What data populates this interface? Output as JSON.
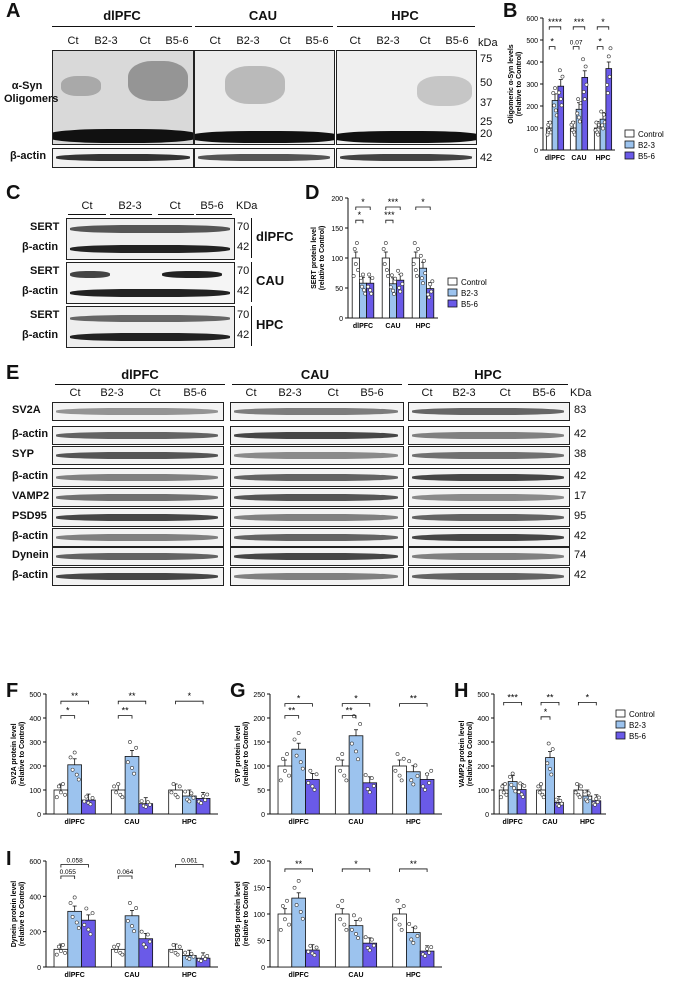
{
  "panel_letters": [
    "A",
    "B",
    "C",
    "D",
    "E",
    "F",
    "G",
    "H",
    "I",
    "J"
  ],
  "blot_A": {
    "regions": [
      "dlPFC",
      "CAU",
      "HPC"
    ],
    "lanes": [
      "Ct",
      "B2-3",
      "Ct",
      "B5-6"
    ],
    "row_labels": [
      "α-Syn\nOligomers",
      "β-actin"
    ],
    "kda_header": "kDa",
    "kda_marks": [
      "75",
      "50",
      "37",
      "25",
      "20",
      "42"
    ]
  },
  "blot_C": {
    "lanes": [
      "Ct",
      "B2-3",
      "Ct",
      "B5-6"
    ],
    "kda_header": "KDa",
    "rows": [
      {
        "region": "dlPFC",
        "labels": [
          "SERT",
          "β-actin"
        ],
        "kda": [
          "70",
          "42"
        ]
      },
      {
        "region": "CAU",
        "labels": [
          "SERT",
          "β-actin"
        ],
        "kda": [
          "70",
          "42"
        ]
      },
      {
        "region": "HPC",
        "labels": [
          "SERT",
          "β-actin"
        ],
        "kda": [
          "70",
          "42"
        ]
      }
    ]
  },
  "blot_E": {
    "regions": [
      "dlPFC",
      "CAU",
      "HPC"
    ],
    "lanes": [
      "Ct",
      "B2-3",
      "Ct",
      "B5-6"
    ],
    "kda_header": "KDa",
    "rows": [
      {
        "label": "SV2A",
        "kda": "83"
      },
      {
        "label": "β-actin",
        "kda": "42"
      },
      {
        "label": "SYP",
        "kda": "38"
      },
      {
        "label": "β-actin",
        "kda": "42"
      },
      {
        "label": "VAMP2",
        "kda": "17"
      },
      {
        "label": "PSD95",
        "kda": "95"
      },
      {
        "label": "β-actin",
        "kda": "42"
      },
      {
        "label": "Dynein",
        "kda": "74"
      },
      {
        "label": "β-actin",
        "kda": "42"
      }
    ]
  },
  "legend": {
    "labels": [
      "Control",
      "B2-3",
      "B5-6"
    ]
  },
  "colors": {
    "control": "#ffffff",
    "b23": "#9cc3ee",
    "b56": "#6a5ae8",
    "ink": "#111111"
  },
  "chart_data": [
    {
      "id": "B",
      "type": "bar",
      "ylabel": "Oligomeric α-Syn levels\n(relative to Control)",
      "categories": [
        "dlPFC",
        "CAU",
        "HPC"
      ],
      "ylim": [
        0,
        600
      ],
      "yticks": [
        0,
        100,
        200,
        300,
        400,
        500,
        600
      ],
      "tick_labels": [
        "0",
        "100",
        "200",
        "300",
        "400",
        "500",
        "600"
      ],
      "series": [
        {
          "name": "Control",
          "values": [
            100,
            100,
            100
          ]
        },
        {
          "name": "B2-3",
          "values": [
            225,
            185,
            140
          ]
        },
        {
          "name": "B5-6",
          "values": [
            290,
            330,
            370
          ]
        }
      ],
      "annotations": [
        {
          "label": "****",
          "from": 0,
          "to": 2,
          "cat": 0,
          "y": 560
        },
        {
          "label": "*",
          "from": 0,
          "to": 1,
          "cat": 0,
          "y": 470
        },
        {
          "label": "***",
          "from": 0,
          "to": 2,
          "cat": 1,
          "y": 560
        },
        {
          "label": "0.07",
          "from": 0,
          "to": 1,
          "cat": 1,
          "y": 470
        },
        {
          "label": "*",
          "from": 0,
          "to": 2,
          "cat": 2,
          "y": 560
        },
        {
          "label": "*",
          "from": 0,
          "to": 1,
          "cat": 2,
          "y": 470
        }
      ],
      "legend": true
    },
    {
      "id": "D",
      "type": "bar",
      "ylabel": "SERT protein level\n(relative to Control)",
      "categories": [
        "dlPFC",
        "CAU",
        "HPC"
      ],
      "ylim": [
        0,
        200
      ],
      "yticks": [
        0,
        50,
        100,
        150,
        200
      ],
      "tick_labels": [
        "0",
        "50",
        "100",
        "150",
        "200"
      ],
      "series": [
        {
          "name": "Control",
          "values": [
            100,
            100,
            100
          ]
        },
        {
          "name": "B2-3",
          "values": [
            58,
            57,
            83
          ]
        },
        {
          "name": "B5-6",
          "values": [
            58,
            63,
            49
          ]
        }
      ],
      "annotations": [
        {
          "label": "*",
          "from": 0,
          "to": 2,
          "cat": 0,
          "y": 185
        },
        {
          "label": "*",
          "from": 0,
          "to": 1,
          "cat": 0,
          "y": 163
        },
        {
          "label": "***",
          "from": 0,
          "to": 2,
          "cat": 1,
          "y": 185
        },
        {
          "label": "***",
          "from": 0,
          "to": 1,
          "cat": 1,
          "y": 163
        },
        {
          "label": "*",
          "from": 0,
          "to": 2,
          "cat": 2,
          "y": 185
        }
      ],
      "legend": true
    },
    {
      "id": "F",
      "type": "bar",
      "ylabel": "SV2A protein level\n(relative to Control)",
      "categories": [
        "dlPFC",
        "CAU",
        "HPC"
      ],
      "ylim": [
        0,
        500
      ],
      "yticks": [
        0,
        100,
        200,
        300,
        400,
        500
      ],
      "tick_labels": [
        "0",
        "100",
        "200",
        "300",
        "400",
        "500"
      ],
      "series": [
        {
          "name": "Control",
          "values": [
            100,
            100,
            100
          ]
        },
        {
          "name": "B2-3",
          "values": [
            205,
            240,
            75
          ]
        },
        {
          "name": "B5-6",
          "values": [
            58,
            43,
            65
          ]
        }
      ],
      "annotations": [
        {
          "label": "**",
          "from": 0,
          "to": 2,
          "cat": 0,
          "y": 470
        },
        {
          "label": "*",
          "from": 0,
          "to": 1,
          "cat": 0,
          "y": 410
        },
        {
          "label": "**",
          "from": 0,
          "to": 2,
          "cat": 1,
          "y": 470
        },
        {
          "label": "**",
          "from": 0,
          "to": 1,
          "cat": 1,
          "y": 410
        },
        {
          "label": "*",
          "from": 0,
          "to": 2,
          "cat": 2,
          "y": 470
        }
      ],
      "legend": false
    },
    {
      "id": "G",
      "type": "bar",
      "ylabel": "SYP protein level\n(relative to Control)",
      "categories": [
        "dlPFC",
        "CAU",
        "HPC"
      ],
      "ylim": [
        0,
        250
      ],
      "yticks": [
        0,
        50,
        100,
        150,
        200,
        250
      ],
      "tick_labels": [
        "0",
        "50",
        "100",
        "150",
        "200",
        "250"
      ],
      "series": [
        {
          "name": "Control",
          "values": [
            100,
            100,
            100
          ]
        },
        {
          "name": "B2-3",
          "values": [
            135,
            163,
            88
          ]
        },
        {
          "name": "B5-6",
          "values": [
            72,
            65,
            72
          ]
        }
      ],
      "annotations": [
        {
          "label": "*",
          "from": 0,
          "to": 2,
          "cat": 0,
          "y": 230
        },
        {
          "label": "**",
          "from": 0,
          "to": 1,
          "cat": 0,
          "y": 205
        },
        {
          "label": "*",
          "from": 0,
          "to": 2,
          "cat": 1,
          "y": 230
        },
        {
          "label": "**",
          "from": 0,
          "to": 1,
          "cat": 1,
          "y": 205
        },
        {
          "label": "**",
          "from": 0,
          "to": 2,
          "cat": 2,
          "y": 230
        }
      ],
      "legend": false
    },
    {
      "id": "H",
      "type": "bar",
      "ylabel": "VAMP2 protein level\n(relative to Control)",
      "categories": [
        "dlPFC",
        "CAU",
        "HPC"
      ],
      "ylim": [
        0,
        500
      ],
      "yticks": [
        0,
        100,
        200,
        300,
        400,
        500
      ],
      "tick_labels": [
        "0",
        "100",
        "200",
        "300",
        "400",
        "500"
      ],
      "series": [
        {
          "name": "Control",
          "values": [
            100,
            100,
            100
          ]
        },
        {
          "name": "B2-3",
          "values": [
            135,
            235,
            75
          ]
        },
        {
          "name": "B5-6",
          "values": [
            102,
            48,
            55
          ]
        }
      ],
      "annotations": [
        {
          "label": "***",
          "from": 0,
          "to": 2,
          "cat": 0,
          "y": 465
        },
        {
          "label": "**",
          "from": 0,
          "to": 2,
          "cat": 1,
          "y": 465
        },
        {
          "label": "*",
          "from": 0,
          "to": 1,
          "cat": 1,
          "y": 405
        },
        {
          "label": "*",
          "from": 0,
          "to": 2,
          "cat": 2,
          "y": 465
        }
      ],
      "legend": true
    },
    {
      "id": "I",
      "type": "bar",
      "ylabel": "Dynein protein level\n(relative to Control)",
      "categories": [
        "dlPFC",
        "CAU",
        "HPC"
      ],
      "ylim": [
        0,
        600
      ],
      "yticks": [
        0,
        200,
        400,
        600
      ],
      "tick_labels": [
        "0",
        "200",
        "400",
        "600"
      ],
      "series": [
        {
          "name": "Control",
          "values": [
            100,
            100,
            100
          ]
        },
        {
          "name": "B2-3",
          "values": [
            315,
            290,
            65
          ]
        },
        {
          "name": "B5-6",
          "values": [
            265,
            160,
            50
          ]
        }
      ],
      "annotations": [
        {
          "label": "0.058",
          "from": 0,
          "to": 2,
          "cat": 0,
          "y": 580
        },
        {
          "label": "0.055",
          "from": 0,
          "to": 1,
          "cat": 0,
          "y": 515
        },
        {
          "label": "0.064",
          "from": 0,
          "to": 1,
          "cat": 1,
          "y": 515
        },
        {
          "label": "0.061",
          "from": 0,
          "to": 2,
          "cat": 2,
          "y": 580
        }
      ],
      "legend": false
    },
    {
      "id": "J",
      "type": "bar",
      "ylabel": "PSD95 protein level\n(relative to Control)",
      "categories": [
        "dlPFC",
        "CAU",
        "HPC"
      ],
      "ylim": [
        0,
        200
      ],
      "yticks": [
        0,
        50,
        100,
        150,
        200
      ],
      "tick_labels": [
        "0",
        "50",
        "100",
        "150",
        "200"
      ],
      "series": [
        {
          "name": "Control",
          "values": [
            100,
            100,
            100
          ]
        },
        {
          "name": "B2-3",
          "values": [
            130,
            78,
            65
          ]
        },
        {
          "name": "B5-6",
          "values": [
            32,
            45,
            30
          ]
        }
      ],
      "annotations": [
        {
          "label": "**",
          "from": 0,
          "to": 2,
          "cat": 0,
          "y": 185
        },
        {
          "label": "*",
          "from": 0,
          "to": 2,
          "cat": 1,
          "y": 185
        },
        {
          "label": "**",
          "from": 0,
          "to": 2,
          "cat": 2,
          "y": 185
        }
      ],
      "legend": false
    }
  ]
}
